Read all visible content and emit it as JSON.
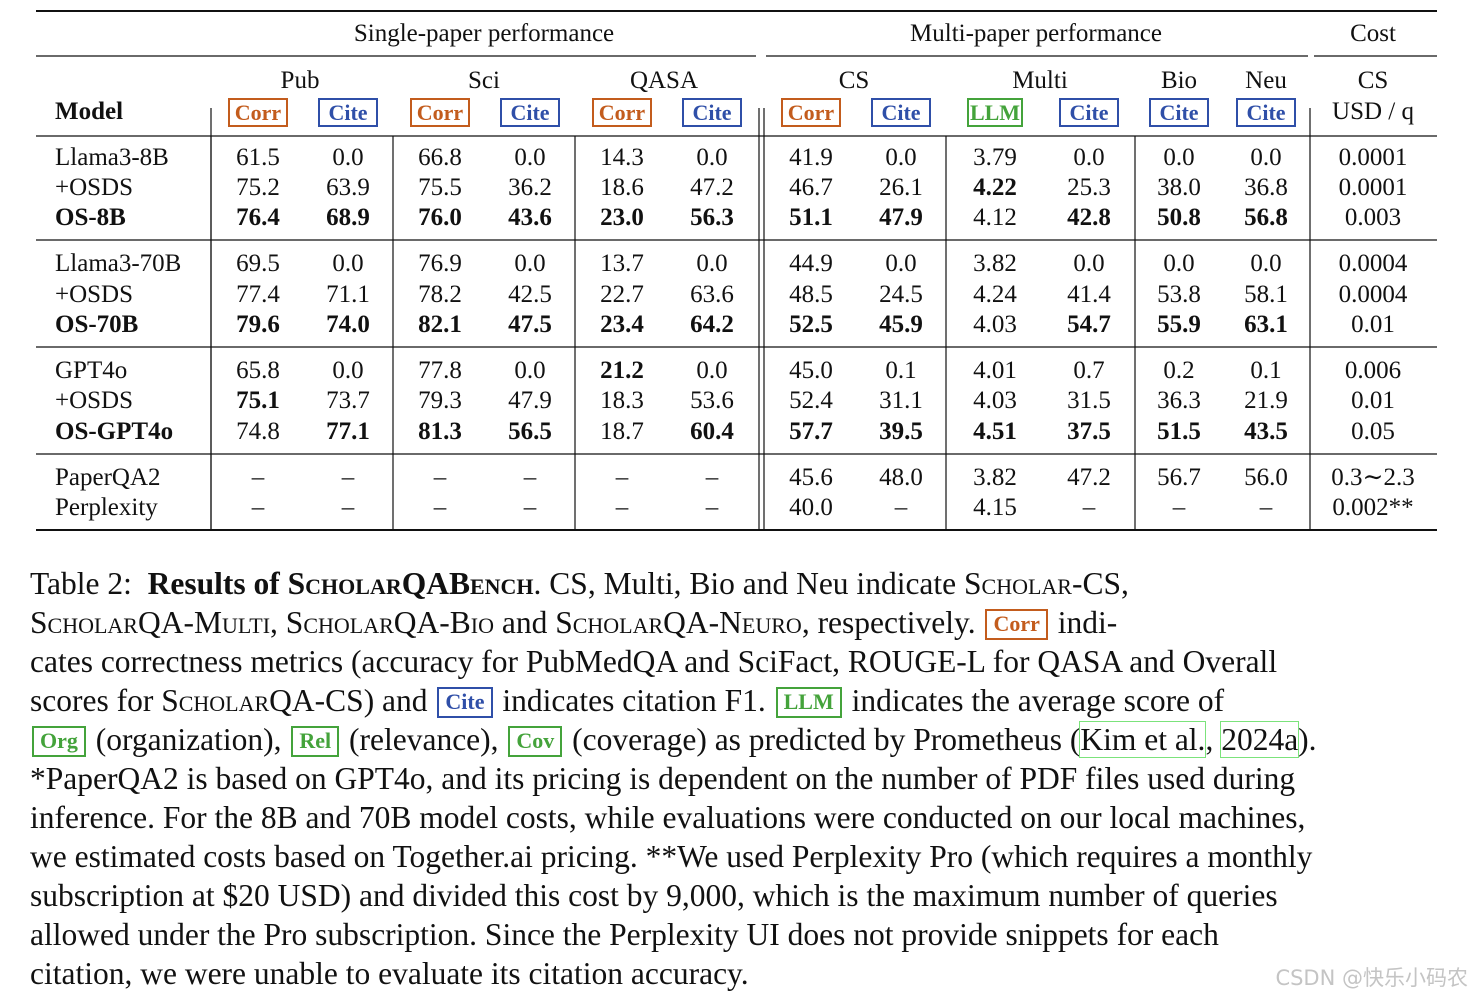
{
  "table": {
    "groups": [
      {
        "id": "single",
        "label": "Single-paper performance"
      },
      {
        "id": "multi",
        "label": "Multi-paper performance"
      },
      {
        "id": "cost",
        "label": "Cost"
      }
    ],
    "model_header": "Model",
    "datasets": [
      {
        "label": "Pub",
        "metrics": [
          {
            "label": "Corr",
            "kind": "corr"
          },
          {
            "label": "Cite",
            "kind": "cite"
          }
        ]
      },
      {
        "label": "Sci",
        "metrics": [
          {
            "label": "Corr",
            "kind": "corr"
          },
          {
            "label": "Cite",
            "kind": "cite"
          }
        ]
      },
      {
        "label": "QASA",
        "metrics": [
          {
            "label": "Corr",
            "kind": "corr"
          },
          {
            "label": "Cite",
            "kind": "cite"
          }
        ]
      },
      {
        "label": "CS",
        "metrics": [
          {
            "label": "Corr",
            "kind": "corr"
          },
          {
            "label": "Cite",
            "kind": "cite"
          }
        ]
      },
      {
        "label": "Multi",
        "metrics": [
          {
            "label": "LLM",
            "kind": "llm"
          },
          {
            "label": "Cite",
            "kind": "cite"
          }
        ]
      },
      {
        "label": "Bio",
        "metrics": [
          {
            "label": "Cite",
            "kind": "cite"
          }
        ]
      },
      {
        "label": "Neu",
        "metrics": [
          {
            "label": "Cite",
            "kind": "cite"
          }
        ]
      }
    ],
    "cost_header": {
      "top": "CS",
      "bottom": "USD / q"
    },
    "row_groups": [
      [
        {
          "model": "Llama3-8B",
          "bold": false,
          "cells": [
            [
              "61.5",
              0
            ],
            [
              "0.0",
              0
            ],
            [
              "66.8",
              0
            ],
            [
              "0.0",
              0
            ],
            [
              "14.3",
              0
            ],
            [
              "0.0",
              0
            ],
            [
              "41.9",
              0
            ],
            [
              "0.0",
              0
            ],
            [
              "3.79",
              0
            ],
            [
              "0.0",
              0
            ],
            [
              "0.0",
              0
            ],
            [
              "0.0",
              0
            ],
            [
              "0.0001",
              0
            ]
          ]
        },
        {
          "model": "+OSDS",
          "bold": false,
          "cells": [
            [
              "75.2",
              0
            ],
            [
              "63.9",
              0
            ],
            [
              "75.5",
              0
            ],
            [
              "36.2",
              0
            ],
            [
              "18.6",
              0
            ],
            [
              "47.2",
              0
            ],
            [
              "46.7",
              0
            ],
            [
              "26.1",
              0
            ],
            [
              "4.22",
              1
            ],
            [
              "25.3",
              0
            ],
            [
              "38.0",
              0
            ],
            [
              "36.8",
              0
            ],
            [
              "0.0001",
              0
            ]
          ]
        },
        {
          "model": "OS-8B",
          "bold": true,
          "cells": [
            [
              "76.4",
              1
            ],
            [
              "68.9",
              1
            ],
            [
              "76.0",
              1
            ],
            [
              "43.6",
              1
            ],
            [
              "23.0",
              1
            ],
            [
              "56.3",
              1
            ],
            [
              "51.1",
              1
            ],
            [
              "47.9",
              1
            ],
            [
              "4.12",
              0
            ],
            [
              "42.8",
              1
            ],
            [
              "50.8",
              1
            ],
            [
              "56.8",
              1
            ],
            [
              "0.003",
              0
            ]
          ]
        }
      ],
      [
        {
          "model": "Llama3-70B",
          "bold": false,
          "cells": [
            [
              "69.5",
              0
            ],
            [
              "0.0",
              0
            ],
            [
              "76.9",
              0
            ],
            [
              "0.0",
              0
            ],
            [
              "13.7",
              0
            ],
            [
              "0.0",
              0
            ],
            [
              "44.9",
              0
            ],
            [
              "0.0",
              0
            ],
            [
              "3.82",
              0
            ],
            [
              "0.0",
              0
            ],
            [
              "0.0",
              0
            ],
            [
              "0.0",
              0
            ],
            [
              "0.0004",
              0
            ]
          ]
        },
        {
          "model": "+OSDS",
          "bold": false,
          "cells": [
            [
              "77.4",
              0
            ],
            [
              "71.1",
              0
            ],
            [
              "78.2",
              0
            ],
            [
              "42.5",
              0
            ],
            [
              "22.7",
              0
            ],
            [
              "63.6",
              0
            ],
            [
              "48.5",
              0
            ],
            [
              "24.5",
              0
            ],
            [
              "4.24",
              0
            ],
            [
              "41.4",
              0
            ],
            [
              "53.8",
              0
            ],
            [
              "58.1",
              0
            ],
            [
              "0.0004",
              0
            ]
          ]
        },
        {
          "model": "OS-70B",
          "bold": true,
          "cells": [
            [
              "79.6",
              1
            ],
            [
              "74.0",
              1
            ],
            [
              "82.1",
              1
            ],
            [
              "47.5",
              1
            ],
            [
              "23.4",
              1
            ],
            [
              "64.2",
              1
            ],
            [
              "52.5",
              1
            ],
            [
              "45.9",
              1
            ],
            [
              "4.03",
              0
            ],
            [
              "54.7",
              1
            ],
            [
              "55.9",
              1
            ],
            [
              "63.1",
              1
            ],
            [
              "0.01",
              0
            ]
          ]
        }
      ],
      [
        {
          "model": "GPT4o",
          "bold": false,
          "cells": [
            [
              "65.8",
              0
            ],
            [
              "0.0",
              0
            ],
            [
              "77.8",
              0
            ],
            [
              "0.0",
              0
            ],
            [
              "21.2",
              1
            ],
            [
              "0.0",
              0
            ],
            [
              "45.0",
              0
            ],
            [
              "0.1",
              0
            ],
            [
              "4.01",
              0
            ],
            [
              "0.7",
              0
            ],
            [
              "0.2",
              0
            ],
            [
              "0.1",
              0
            ],
            [
              "0.006",
              0
            ]
          ]
        },
        {
          "model": "+OSDS",
          "bold": false,
          "cells": [
            [
              "75.1",
              1
            ],
            [
              "73.7",
              0
            ],
            [
              "79.3",
              0
            ],
            [
              "47.9",
              0
            ],
            [
              "18.3",
              0
            ],
            [
              "53.6",
              0
            ],
            [
              "52.4",
              0
            ],
            [
              "31.1",
              0
            ],
            [
              "4.03",
              0
            ],
            [
              "31.5",
              0
            ],
            [
              "36.3",
              0
            ],
            [
              "21.9",
              0
            ],
            [
              "0.01",
              0
            ]
          ]
        },
        {
          "model": "OS-GPT4o",
          "bold": true,
          "cells": [
            [
              "74.8",
              0
            ],
            [
              "77.1",
              1
            ],
            [
              "81.3",
              1
            ],
            [
              "56.5",
              1
            ],
            [
              "18.7",
              0
            ],
            [
              "60.4",
              1
            ],
            [
              "57.7",
              1
            ],
            [
              "39.5",
              1
            ],
            [
              "4.51",
              1
            ],
            [
              "37.5",
              1
            ],
            [
              "51.5",
              1
            ],
            [
              "43.5",
              1
            ],
            [
              "0.05",
              0
            ]
          ]
        }
      ],
      [
        {
          "model": "PaperQA2",
          "bold": false,
          "cells": [
            [
              "–",
              0
            ],
            [
              "–",
              0
            ],
            [
              "–",
              0
            ],
            [
              "–",
              0
            ],
            [
              "–",
              0
            ],
            [
              "–",
              0
            ],
            [
              "45.6",
              0
            ],
            [
              "48.0",
              0
            ],
            [
              "3.82",
              0
            ],
            [
              "47.2",
              0
            ],
            [
              "56.7",
              0
            ],
            [
              "56.0",
              0
            ],
            [
              "0.3∼2.3",
              0
            ]
          ]
        },
        {
          "model": "Perplexity",
          "bold": false,
          "cells": [
            [
              "–",
              0
            ],
            [
              "–",
              0
            ],
            [
              "–",
              0
            ],
            [
              "–",
              0
            ],
            [
              "–",
              0
            ],
            [
              "–",
              0
            ],
            [
              "40.0",
              0
            ],
            [
              "–",
              0
            ],
            [
              "4.15",
              0
            ],
            [
              "–",
              0
            ],
            [
              "–",
              0
            ],
            [
              "–",
              0
            ],
            [
              "0.002**",
              0
            ]
          ]
        }
      ]
    ]
  },
  "caption": {
    "label": "Table 2:",
    "title": "Results of ScholarQABench",
    "bench_short": {
      "cs": "CS",
      "multi": "Multi",
      "bio": "Bio",
      "neu": "Neu"
    },
    "bench_names": [
      "Scholar-CS",
      "ScholarQA-Multi",
      "ScholarQA-Bio",
      "ScholarQA-Neuro"
    ],
    "scholarqa_cs": "ScholarQA-CS",
    "tags": {
      "corr": "Corr",
      "cite": "Cite",
      "llm": "LLM",
      "org": "Org",
      "rel": "Rel",
      "cov": "Cov"
    },
    "citation": {
      "author": "Kim et al.",
      "year": "2024a"
    },
    "text": {
      "l1_a": " CS, Multi, Bio and Neu indicate ",
      "l2_a": ", ",
      "l2_b": ", ",
      "l2_c": " and ",
      "l2_d": ", respectively. ",
      "l2_e": " indi-",
      "l3": "cates correctness metrics (accuracy for PubMedQA and SciFact, ROUGE-L for QASA and Overall",
      "l4_a": "scores for ",
      "l4_b": ") and ",
      "l4_c": " indicates citation F1. ",
      "l4_d": " indicates the average score of",
      "l5_a": " (organization), ",
      "l5_b": " (relevance), ",
      "l5_c": " (coverage) as predicted by Prometheus (",
      "l5_d": ", ",
      "l5_e": ").",
      "l6": "*PaperQA2 is based on GPT4o, and its pricing is dependent on the number of PDF files used during",
      "l7": "inference. For the 8B and 70B model costs, while evaluations were conducted on our local machines,",
      "l8": "we estimated costs based on Together.ai pricing. **We used Perplexity Pro (which requires a monthly",
      "l9": "subscription at $20 USD) and divided this cost by 9,000, which is the maximum number of queries",
      "l10": "allowed under the Pro subscription.  Since the Perplexity UI does not provide snippets for each",
      "l11": "citation, we were unable to evaluate its citation accuracy."
    }
  },
  "watermark": "CSDN @快乐小码农",
  "colors": {
    "corr": "#c35c1d",
    "cite": "#2f4fa8",
    "llm": "#44a33b",
    "link_box": "#7be37b"
  }
}
